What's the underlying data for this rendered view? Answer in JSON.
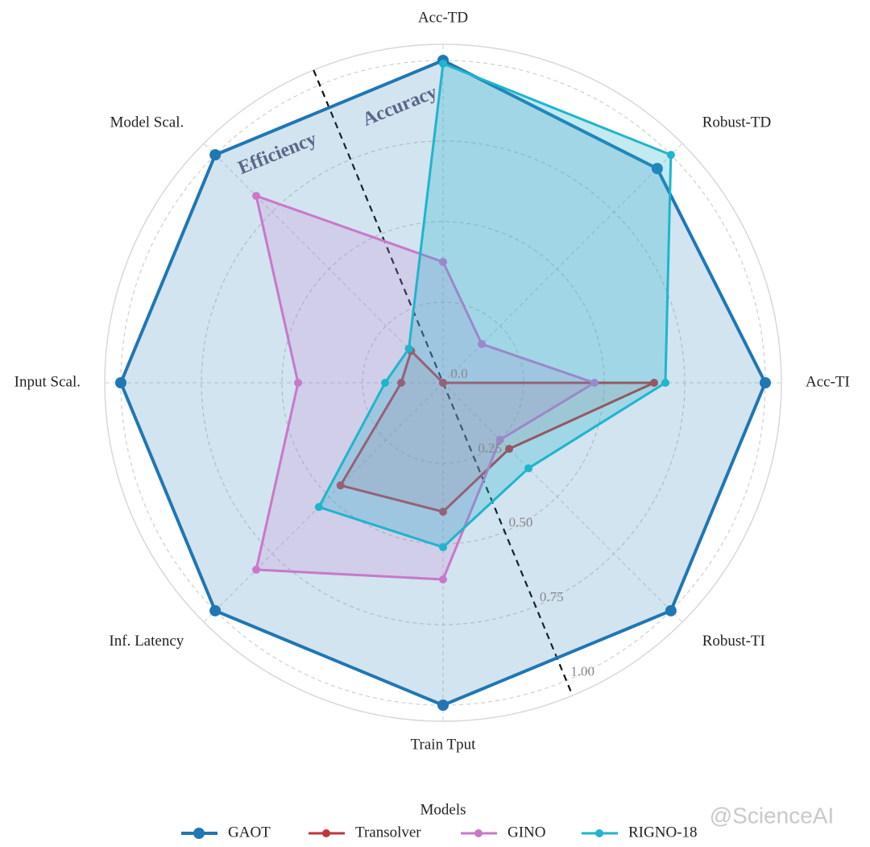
{
  "chart_data": {
    "type": "radar",
    "axes": [
      "Acc-TD",
      "Robust-TD",
      "Acc-TI",
      "Robust-TI",
      "Train Tput",
      "Inf. Latency",
      "Input Scal.",
      "Model Scal."
    ],
    "series": [
      {
        "name": "GAOT",
        "color": "#1f77b4",
        "values": [
          1.0,
          0.94,
          1.0,
          1.0,
          1.0,
          1.0,
          1.0,
          1.0
        ]
      },
      {
        "name": "Transolver",
        "color": "#c0363c",
        "values": [
          0.0,
          0.0,
          0.655,
          0.29,
          0.4,
          0.45,
          0.13,
          0.14
        ]
      },
      {
        "name": "GINO",
        "color": "#c978c9",
        "values": [
          0.375,
          0.17,
          0.47,
          0.25,
          0.61,
          0.82,
          0.45,
          0.82
        ]
      },
      {
        "name": "RIGNO-18",
        "color": "#1fb5cc",
        "values": [
          0.99,
          1.0,
          0.69,
          0.375,
          0.51,
          0.545,
          0.18,
          0.15
        ]
      }
    ],
    "rlim": [
      0,
      1.05
    ],
    "rticks": [
      {
        "value": 0,
        "label": "0.0"
      },
      0.25,
      {
        "value": 0.5,
        "label": "0.50"
      },
      0.75,
      {
        "value": 1,
        "label": "1.00"
      }
    ],
    "grid": true,
    "annotations": [
      "Efficiency",
      "Accuracy"
    ],
    "legend_title": "Models",
    "legend_position": "bottom",
    "watermark": "@ScienceAI"
  }
}
